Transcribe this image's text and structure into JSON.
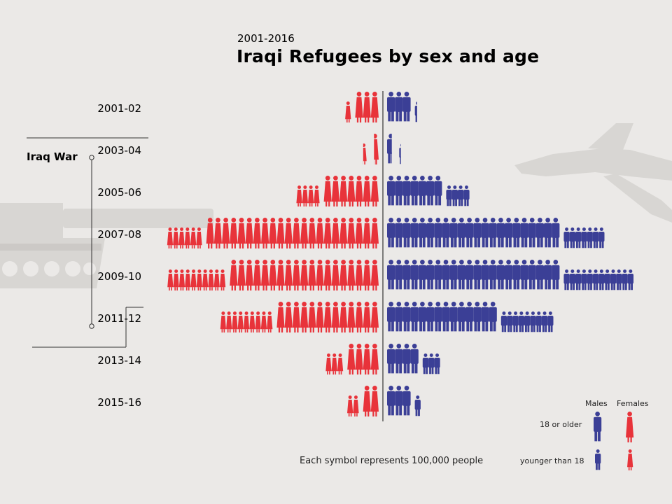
{
  "subtitle": "2001-2016",
  "title": "Iraqi Refugees by sex and age",
  "event_label": "Iraq War",
  "footnote": "Each symbol represents 100,000 people",
  "legend": {
    "males": "Males",
    "females": "Females",
    "adult": "18 or older",
    "child": "younger than 18"
  },
  "colors": {
    "male": "#3b3f96",
    "female": "#e8333a",
    "axis": "#333333",
    "silhouette": "#d8d6d3"
  },
  "chart_data": {
    "type": "pictogram-pyramid",
    "unit": "Each symbol represents 100,000 people",
    "periods": [
      "2001-02",
      "2003-04",
      "2005-06",
      "2007-08",
      "2009-10",
      "2011-12",
      "2013-14",
      "2015-16"
    ],
    "series": [
      {
        "name": "Males 18 or older",
        "values": [
          3.0,
          0.6,
          7.0,
          22.0,
          22.0,
          14.0,
          4.0,
          3.0
        ]
      },
      {
        "name": "Males younger than 18",
        "values": [
          0.4,
          0.3,
          4.0,
          7.0,
          12.0,
          9.0,
          3.0,
          1.0
        ]
      },
      {
        "name": "Females 18 or older",
        "values": [
          3.0,
          0.6,
          7.0,
          22.0,
          19.0,
          13.0,
          4.0,
          2.0
        ]
      },
      {
        "name": "Females younger than 18",
        "values": [
          1.0,
          0.6,
          4.0,
          6.0,
          10.0,
          9.0,
          3.0,
          2.0
        ]
      }
    ]
  }
}
